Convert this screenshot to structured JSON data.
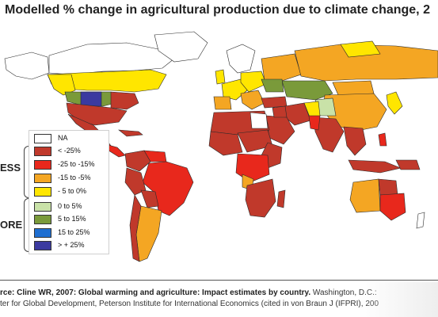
{
  "title": "Modelled % change in agricultural production due to climate change, 2",
  "legend": {
    "groups": [
      {
        "label": "ESS"
      },
      {
        "label": "ORE"
      }
    ],
    "items": [
      {
        "label": "NA",
        "color": "#ffffff"
      },
      {
        "label": "< -25%",
        "color": "#c0392b"
      },
      {
        "label": "-25 to -15%",
        "color": "#e8281c"
      },
      {
        "label": "-15 to -5%",
        "color": "#f4a623"
      },
      {
        "label": "- 5 to 0%",
        "color": "#ffe600"
      },
      {
        "label": "0 to 5%",
        "color": "#c9e2a8"
      },
      {
        "label": "5 to 15%",
        "color": "#7a9a3a"
      },
      {
        "label": "15 to 25%",
        "color": "#1f6fd1"
      },
      {
        "label": "> + 25%",
        "color": "#3b3aa0"
      }
    ]
  },
  "source": {
    "bold_part": "rce: Cline WR, 2007: Global warming and agriculture: Impact estimates by country.",
    "normal_part": " Washington, D.C.:",
    "line2": "ter for Global Development, Peterson Institute for International Economics (cited in von Braun J (IFPRI), 200"
  }
}
